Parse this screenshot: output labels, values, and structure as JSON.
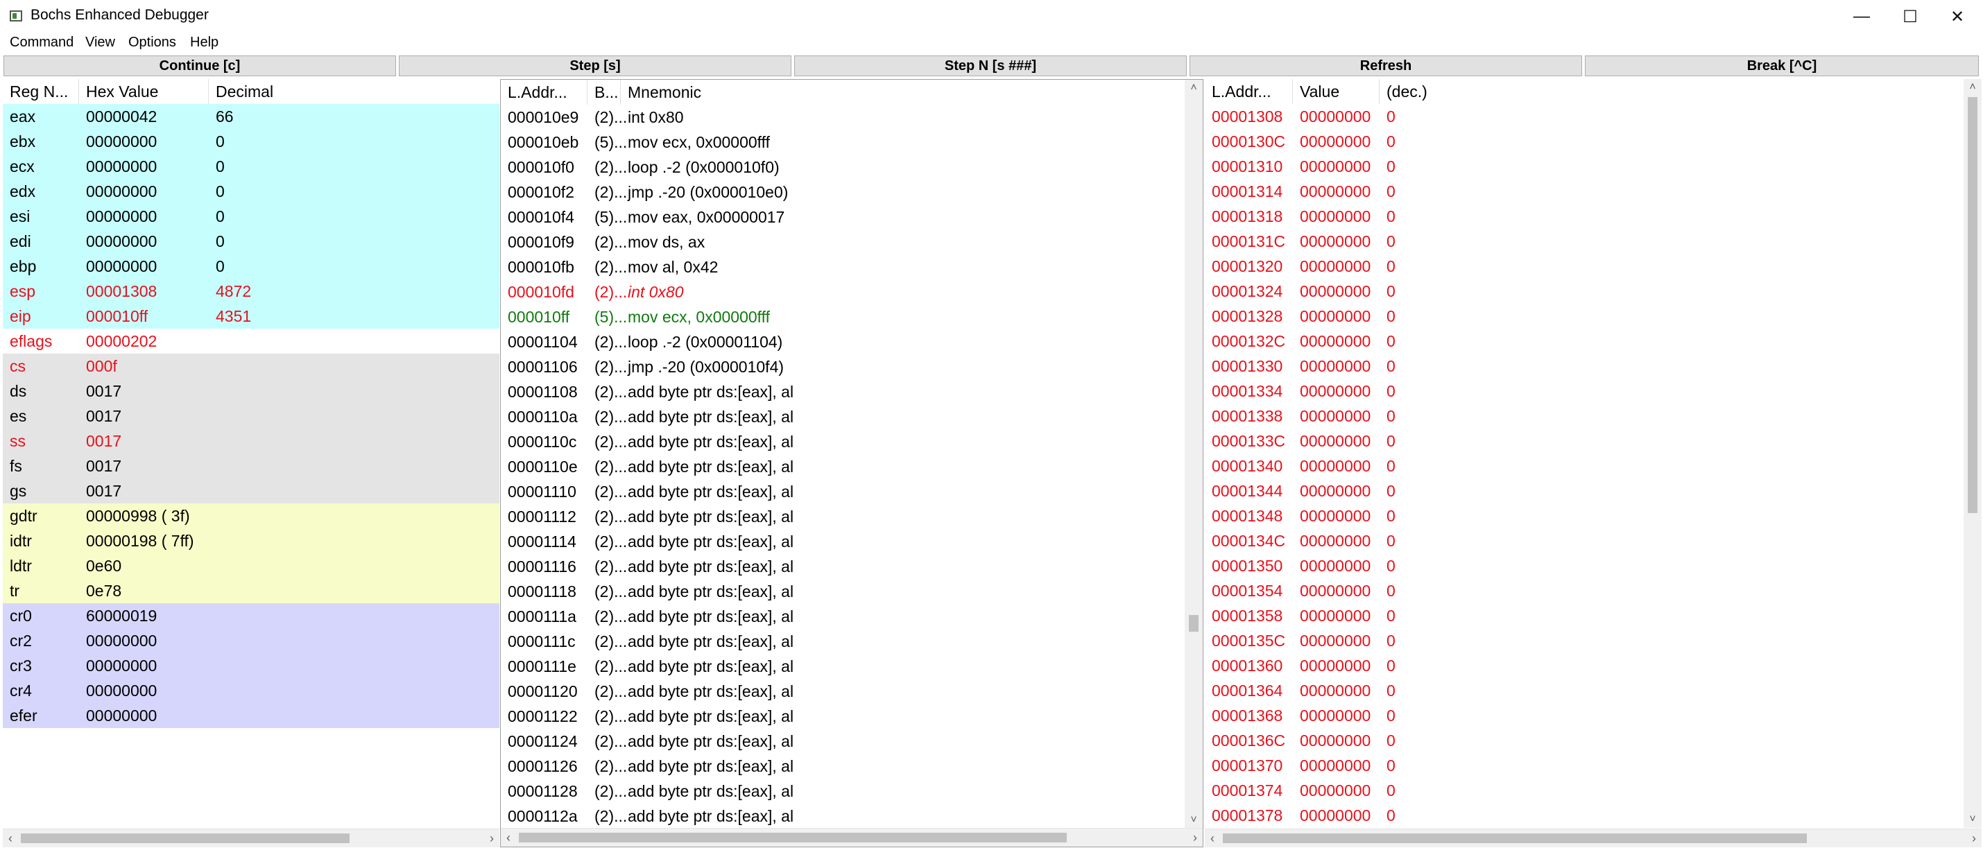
{
  "window": {
    "title": "Bochs Enhanced Debugger",
    "minimize": "—",
    "maximize": "☐",
    "close": "✕"
  },
  "menu": [
    "Command",
    "View",
    "Options",
    "Help"
  ],
  "buttons": {
    "continue": "Continue [c]",
    "step": "Step [s]",
    "stepn": "Step N [s ###]",
    "refresh": "Refresh",
    "break": "Break [^C]"
  },
  "colors": {
    "gpr_bg": "#c6fefe",
    "seg_bg": "#e4e4e4",
    "table_bg": "#f8fcc8",
    "cr_bg": "#d6d6fc",
    "changed": "#e8101a",
    "current": "#0f7a0f"
  },
  "registers": {
    "headers": [
      "Reg N...",
      "Hex Value",
      "Decimal"
    ],
    "rows": [
      {
        "name": "eax",
        "hex": "00000042",
        "dec": "66",
        "group": "gpr",
        "changed": false
      },
      {
        "name": "ebx",
        "hex": "00000000",
        "dec": "0",
        "group": "gpr",
        "changed": false
      },
      {
        "name": "ecx",
        "hex": "00000000",
        "dec": "0",
        "group": "gpr",
        "changed": false
      },
      {
        "name": "edx",
        "hex": "00000000",
        "dec": "0",
        "group": "gpr",
        "changed": false
      },
      {
        "name": "esi",
        "hex": "00000000",
        "dec": "0",
        "group": "gpr",
        "changed": false
      },
      {
        "name": "edi",
        "hex": "00000000",
        "dec": "0",
        "group": "gpr",
        "changed": false
      },
      {
        "name": "ebp",
        "hex": "00000000",
        "dec": "0",
        "group": "gpr",
        "changed": false
      },
      {
        "name": "esp",
        "hex": "00001308",
        "dec": "4872",
        "group": "gpr",
        "changed": true
      },
      {
        "name": "eip",
        "hex": "000010ff",
        "dec": "4351",
        "group": "gpr",
        "changed": true
      },
      {
        "name": "eflags",
        "hex": "00000202",
        "dec": "",
        "group": "flags",
        "changed": true
      },
      {
        "name": "cs",
        "hex": "000f",
        "dec": "",
        "group": "seg",
        "changed": true
      },
      {
        "name": "ds",
        "hex": "0017",
        "dec": "",
        "group": "seg",
        "changed": false
      },
      {
        "name": "es",
        "hex": "0017",
        "dec": "",
        "group": "seg",
        "changed": false
      },
      {
        "name": "ss",
        "hex": "0017",
        "dec": "",
        "group": "seg",
        "changed": true
      },
      {
        "name": "fs",
        "hex": "0017",
        "dec": "",
        "group": "seg",
        "changed": false
      },
      {
        "name": "gs",
        "hex": "0017",
        "dec": "",
        "group": "seg",
        "changed": false
      },
      {
        "name": "gdtr",
        "hex": "00000998 ( 3f)",
        "dec": "",
        "group": "table",
        "changed": false
      },
      {
        "name": "idtr",
        "hex": "00000198 ( 7ff)",
        "dec": "",
        "group": "table",
        "changed": false
      },
      {
        "name": "ldtr",
        "hex": "0e60",
        "dec": "",
        "group": "table",
        "changed": false
      },
      {
        "name": "tr",
        "hex": "0e78",
        "dec": "",
        "group": "table",
        "changed": false
      },
      {
        "name": "cr0",
        "hex": "60000019",
        "dec": "",
        "group": "cr",
        "changed": false
      },
      {
        "name": "cr2",
        "hex": "00000000",
        "dec": "",
        "group": "cr",
        "changed": false
      },
      {
        "name": "cr3",
        "hex": "00000000",
        "dec": "",
        "group": "cr",
        "changed": false
      },
      {
        "name": "cr4",
        "hex": "00000000",
        "dec": "",
        "group": "cr",
        "changed": false
      },
      {
        "name": "efer",
        "hex": "00000000",
        "dec": "",
        "group": "cr",
        "changed": false
      }
    ]
  },
  "disasm": {
    "headers": [
      "L.Addr...",
      "B...",
      "Mnemonic"
    ],
    "rows": [
      {
        "addr": "000010e9",
        "bytes": "(2)...",
        "mnem": "int 0x80",
        "state": "normal"
      },
      {
        "addr": "000010eb",
        "bytes": "(5)...",
        "mnem": "mov ecx, 0x00000fff",
        "state": "normal"
      },
      {
        "addr": "000010f0",
        "bytes": "(2)...",
        "mnem": "loop .-2  (0x000010f0)",
        "state": "normal"
      },
      {
        "addr": "000010f2",
        "bytes": "(2)...",
        "mnem": "jmp .-20  (0x000010e0)",
        "state": "normal"
      },
      {
        "addr": "000010f4",
        "bytes": "(5)...",
        "mnem": "mov eax, 0x00000017",
        "state": "normal"
      },
      {
        "addr": "000010f9",
        "bytes": "(2)...",
        "mnem": "mov ds, ax",
        "state": "normal"
      },
      {
        "addr": "000010fb",
        "bytes": "(2)...",
        "mnem": "mov al, 0x42",
        "state": "normal"
      },
      {
        "addr": "000010fd",
        "bytes": "(2)...",
        "mnem": "int 0x80",
        "state": "breakpoint"
      },
      {
        "addr": "000010ff",
        "bytes": "(5)...",
        "mnem": "mov ecx, 0x00000fff",
        "state": "current"
      },
      {
        "addr": "00001104",
        "bytes": "(2)...",
        "mnem": "loop .-2  (0x00001104)",
        "state": "normal"
      },
      {
        "addr": "00001106",
        "bytes": "(2)...",
        "mnem": "jmp .-20  (0x000010f4)",
        "state": "normal"
      },
      {
        "addr": "00001108",
        "bytes": "(2)...",
        "mnem": "add byte ptr ds:[eax], al",
        "state": "normal"
      },
      {
        "addr": "0000110a",
        "bytes": "(2)...",
        "mnem": "add byte ptr ds:[eax], al",
        "state": "normal"
      },
      {
        "addr": "0000110c",
        "bytes": "(2)...",
        "mnem": "add byte ptr ds:[eax], al",
        "state": "normal"
      },
      {
        "addr": "0000110e",
        "bytes": "(2)...",
        "mnem": "add byte ptr ds:[eax], al",
        "state": "normal"
      },
      {
        "addr": "00001110",
        "bytes": "(2)...",
        "mnem": "add byte ptr ds:[eax], al",
        "state": "normal"
      },
      {
        "addr": "00001112",
        "bytes": "(2)...",
        "mnem": "add byte ptr ds:[eax], al",
        "state": "normal"
      },
      {
        "addr": "00001114",
        "bytes": "(2)...",
        "mnem": "add byte ptr ds:[eax], al",
        "state": "normal"
      },
      {
        "addr": "00001116",
        "bytes": "(2)...",
        "mnem": "add byte ptr ds:[eax], al",
        "state": "normal"
      },
      {
        "addr": "00001118",
        "bytes": "(2)...",
        "mnem": "add byte ptr ds:[eax], al",
        "state": "normal"
      },
      {
        "addr": "0000111a",
        "bytes": "(2)...",
        "mnem": "add byte ptr ds:[eax], al",
        "state": "normal"
      },
      {
        "addr": "0000111c",
        "bytes": "(2)...",
        "mnem": "add byte ptr ds:[eax], al",
        "state": "normal"
      },
      {
        "addr": "0000111e",
        "bytes": "(2)...",
        "mnem": "add byte ptr ds:[eax], al",
        "state": "normal"
      },
      {
        "addr": "00001120",
        "bytes": "(2)...",
        "mnem": "add byte ptr ds:[eax], al",
        "state": "normal"
      },
      {
        "addr": "00001122",
        "bytes": "(2)...",
        "mnem": "add byte ptr ds:[eax], al",
        "state": "normal"
      },
      {
        "addr": "00001124",
        "bytes": "(2)...",
        "mnem": "add byte ptr ds:[eax], al",
        "state": "normal"
      },
      {
        "addr": "00001126",
        "bytes": "(2)...",
        "mnem": "add byte ptr ds:[eax], al",
        "state": "normal"
      },
      {
        "addr": "00001128",
        "bytes": "(2)...",
        "mnem": "add byte ptr ds:[eax], al",
        "state": "normal"
      },
      {
        "addr": "0000112a",
        "bytes": "(2)...",
        "mnem": "add byte ptr ds:[eax], al",
        "state": "normal"
      }
    ]
  },
  "stack": {
    "headers": [
      "L.Addr...",
      "Value",
      "(dec.)"
    ],
    "rows": [
      {
        "addr": "00001308",
        "value": "00000000",
        "dec": "0"
      },
      {
        "addr": "0000130C",
        "value": "00000000",
        "dec": "0"
      },
      {
        "addr": "00001310",
        "value": "00000000",
        "dec": "0"
      },
      {
        "addr": "00001314",
        "value": "00000000",
        "dec": "0"
      },
      {
        "addr": "00001318",
        "value": "00000000",
        "dec": "0"
      },
      {
        "addr": "0000131C",
        "value": "00000000",
        "dec": "0"
      },
      {
        "addr": "00001320",
        "value": "00000000",
        "dec": "0"
      },
      {
        "addr": "00001324",
        "value": "00000000",
        "dec": "0"
      },
      {
        "addr": "00001328",
        "value": "00000000",
        "dec": "0"
      },
      {
        "addr": "0000132C",
        "value": "00000000",
        "dec": "0"
      },
      {
        "addr": "00001330",
        "value": "00000000",
        "dec": "0"
      },
      {
        "addr": "00001334",
        "value": "00000000",
        "dec": "0"
      },
      {
        "addr": "00001338",
        "value": "00000000",
        "dec": "0"
      },
      {
        "addr": "0000133C",
        "value": "00000000",
        "dec": "0"
      },
      {
        "addr": "00001340",
        "value": "00000000",
        "dec": "0"
      },
      {
        "addr": "00001344",
        "value": "00000000",
        "dec": "0"
      },
      {
        "addr": "00001348",
        "value": "00000000",
        "dec": "0"
      },
      {
        "addr": "0000134C",
        "value": "00000000",
        "dec": "0"
      },
      {
        "addr": "00001350",
        "value": "00000000",
        "dec": "0"
      },
      {
        "addr": "00001354",
        "value": "00000000",
        "dec": "0"
      },
      {
        "addr": "00001358",
        "value": "00000000",
        "dec": "0"
      },
      {
        "addr": "0000135C",
        "value": "00000000",
        "dec": "0"
      },
      {
        "addr": "00001360",
        "value": "00000000",
        "dec": "0"
      },
      {
        "addr": "00001364",
        "value": "00000000",
        "dec": "0"
      },
      {
        "addr": "00001368",
        "value": "00000000",
        "dec": "0"
      },
      {
        "addr": "0000136C",
        "value": "00000000",
        "dec": "0"
      },
      {
        "addr": "00001370",
        "value": "00000000",
        "dec": "0"
      },
      {
        "addr": "00001374",
        "value": "00000000",
        "dec": "0"
      },
      {
        "addr": "00001378",
        "value": "00000000",
        "dec": "0"
      }
    ]
  },
  "scroll_icons": {
    "left": "‹",
    "right": "›",
    "up": "˄",
    "down": "˅"
  }
}
